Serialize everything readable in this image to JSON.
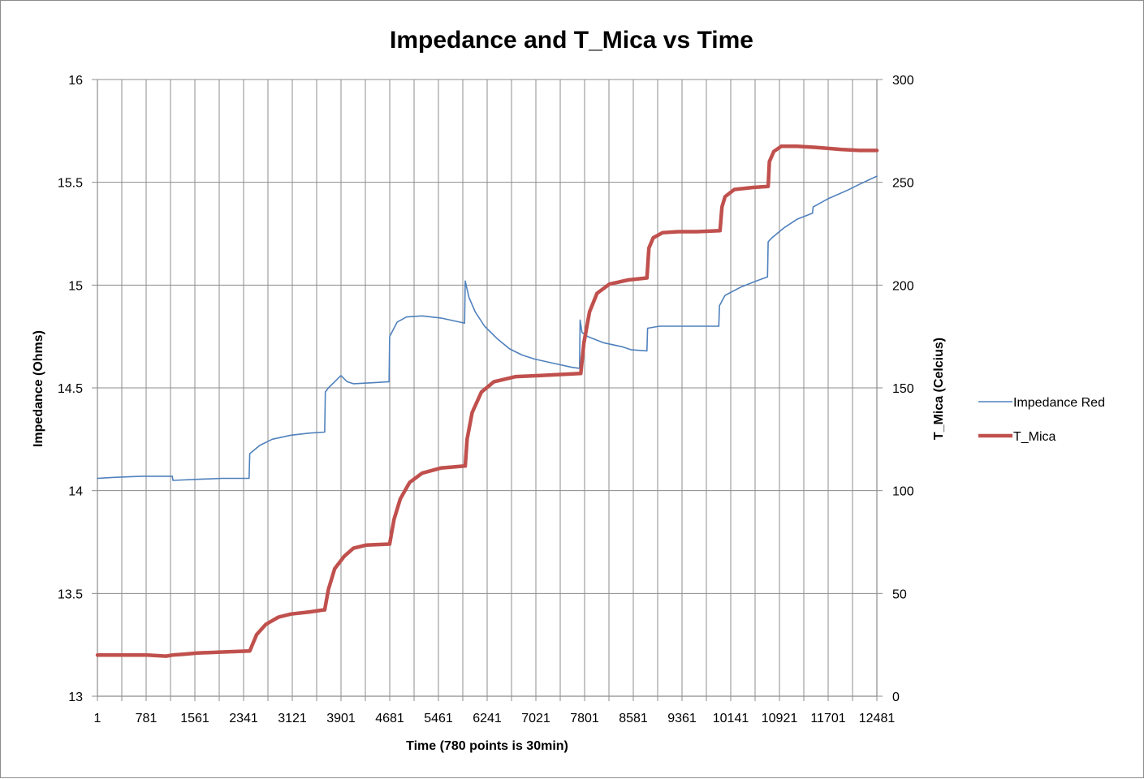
{
  "chart_data": {
    "type": "line",
    "title": "Impedance and T_Mica vs Time",
    "xlabel": "Time (780 points is 30min)",
    "ylabel_left": "Impedance (Ohms)",
    "ylabel_right": "T_Mica (Celcius)",
    "x_tick_labels": [
      "1",
      "781",
      "1561",
      "2341",
      "3121",
      "3901",
      "4681",
      "5461",
      "6241",
      "7021",
      "7801",
      "8581",
      "9361",
      "10141",
      "10921",
      "11701",
      "12481"
    ],
    "x_range": [
      1,
      12481
    ],
    "y_left_ticks": [
      "13",
      "13.5",
      "14",
      "14.5",
      "15",
      "15.5",
      "16"
    ],
    "y_left_range": [
      13,
      16
    ],
    "y_right_ticks": [
      "0",
      "50",
      "100",
      "150",
      "200",
      "250",
      "300"
    ],
    "y_right_range": [
      0,
      300
    ],
    "vertical_gridlines_every": 390,
    "horizontal_gridlines": true,
    "legend_position": "right",
    "series": [
      {
        "name": "Impedance Red",
        "axis": "left",
        "color": "#4f81bd",
        "points": [
          [
            1,
            14.06
          ],
          [
            300,
            14.065
          ],
          [
            700,
            14.07
          ],
          [
            1000,
            14.07
          ],
          [
            1200,
            14.07
          ],
          [
            1210,
            14.05
          ],
          [
            1600,
            14.055
          ],
          [
            2000,
            14.06
          ],
          [
            2430,
            14.06
          ],
          [
            2440,
            14.18
          ],
          [
            2600,
            14.22
          ],
          [
            2800,
            14.25
          ],
          [
            3100,
            14.27
          ],
          [
            3400,
            14.28
          ],
          [
            3640,
            14.285
          ],
          [
            3650,
            14.48
          ],
          [
            3700,
            14.5
          ],
          [
            3800,
            14.53
          ],
          [
            3900,
            14.56
          ],
          [
            4000,
            14.53
          ],
          [
            4100,
            14.52
          ],
          [
            4400,
            14.525
          ],
          [
            4670,
            14.53
          ],
          [
            4680,
            14.75
          ],
          [
            4800,
            14.82
          ],
          [
            4950,
            14.845
          ],
          [
            5200,
            14.85
          ],
          [
            5500,
            14.84
          ],
          [
            5800,
            14.82
          ],
          [
            5880,
            14.815
          ],
          [
            5890,
            15.02
          ],
          [
            5950,
            14.94
          ],
          [
            6050,
            14.87
          ],
          [
            6200,
            14.8
          ],
          [
            6400,
            14.74
          ],
          [
            6600,
            14.69
          ],
          [
            6800,
            14.66
          ],
          [
            7000,
            14.64
          ],
          [
            7300,
            14.62
          ],
          [
            7600,
            14.6
          ],
          [
            7720,
            14.595
          ],
          [
            7730,
            14.83
          ],
          [
            7760,
            14.77
          ],
          [
            7850,
            14.75
          ],
          [
            8100,
            14.72
          ],
          [
            8400,
            14.7
          ],
          [
            8550,
            14.685
          ],
          [
            8800,
            14.68
          ],
          [
            8810,
            14.79
          ],
          [
            9000,
            14.8
          ],
          [
            9300,
            14.8
          ],
          [
            9600,
            14.8
          ],
          [
            9950,
            14.8
          ],
          [
            9960,
            14.9
          ],
          [
            10050,
            14.95
          ],
          [
            10300,
            14.99
          ],
          [
            10550,
            15.02
          ],
          [
            10730,
            15.04
          ],
          [
            10740,
            15.21
          ],
          [
            10800,
            15.23
          ],
          [
            11000,
            15.28
          ],
          [
            11200,
            15.32
          ],
          [
            11450,
            15.35
          ],
          [
            11460,
            15.38
          ],
          [
            11700,
            15.42
          ],
          [
            12000,
            15.46
          ],
          [
            12200,
            15.49
          ],
          [
            12481,
            15.53
          ]
        ]
      },
      {
        "name": "T_Mica",
        "axis": "right",
        "color": "#c0504d",
        "points": [
          [
            1,
            20
          ],
          [
            800,
            20
          ],
          [
            1100,
            19.5
          ],
          [
            1200,
            20
          ],
          [
            1400,
            20.5
          ],
          [
            1600,
            21
          ],
          [
            2000,
            21.5
          ],
          [
            2430,
            22
          ],
          [
            2440,
            22
          ],
          [
            2550,
            30
          ],
          [
            2700,
            35
          ],
          [
            2900,
            38.5
          ],
          [
            3100,
            40
          ],
          [
            3400,
            41
          ],
          [
            3620,
            42
          ],
          [
            3640,
            42
          ],
          [
            3700,
            52
          ],
          [
            3800,
            62
          ],
          [
            3950,
            68
          ],
          [
            4100,
            72
          ],
          [
            4300,
            73.5
          ],
          [
            4670,
            74
          ],
          [
            4680,
            74
          ],
          [
            4750,
            86
          ],
          [
            4850,
            96
          ],
          [
            5000,
            104
          ],
          [
            5200,
            108.5
          ],
          [
            5500,
            111
          ],
          [
            5880,
            112
          ],
          [
            5890,
            112
          ],
          [
            5920,
            125
          ],
          [
            6000,
            138
          ],
          [
            6150,
            148
          ],
          [
            6350,
            153
          ],
          [
            6700,
            155.5
          ],
          [
            7100,
            156
          ],
          [
            7730,
            157
          ],
          [
            7740,
            157
          ],
          [
            7790,
            172
          ],
          [
            7880,
            187
          ],
          [
            8000,
            196
          ],
          [
            8200,
            200.5
          ],
          [
            8500,
            202.5
          ],
          [
            8800,
            203.5
          ],
          [
            8830,
            218
          ],
          [
            8900,
            223
          ],
          [
            9050,
            225.5
          ],
          [
            9300,
            226
          ],
          [
            9600,
            226
          ],
          [
            9970,
            226.5
          ],
          [
            10000,
            238
          ],
          [
            10050,
            243
          ],
          [
            10200,
            246.5
          ],
          [
            10500,
            247.5
          ],
          [
            10740,
            248
          ],
          [
            10760,
            260
          ],
          [
            10830,
            265
          ],
          [
            10950,
            267.5
          ],
          [
            11200,
            267.5
          ],
          [
            11500,
            267
          ],
          [
            11900,
            266
          ],
          [
            12200,
            265.5
          ],
          [
            12481,
            265.5
          ]
        ]
      }
    ]
  }
}
